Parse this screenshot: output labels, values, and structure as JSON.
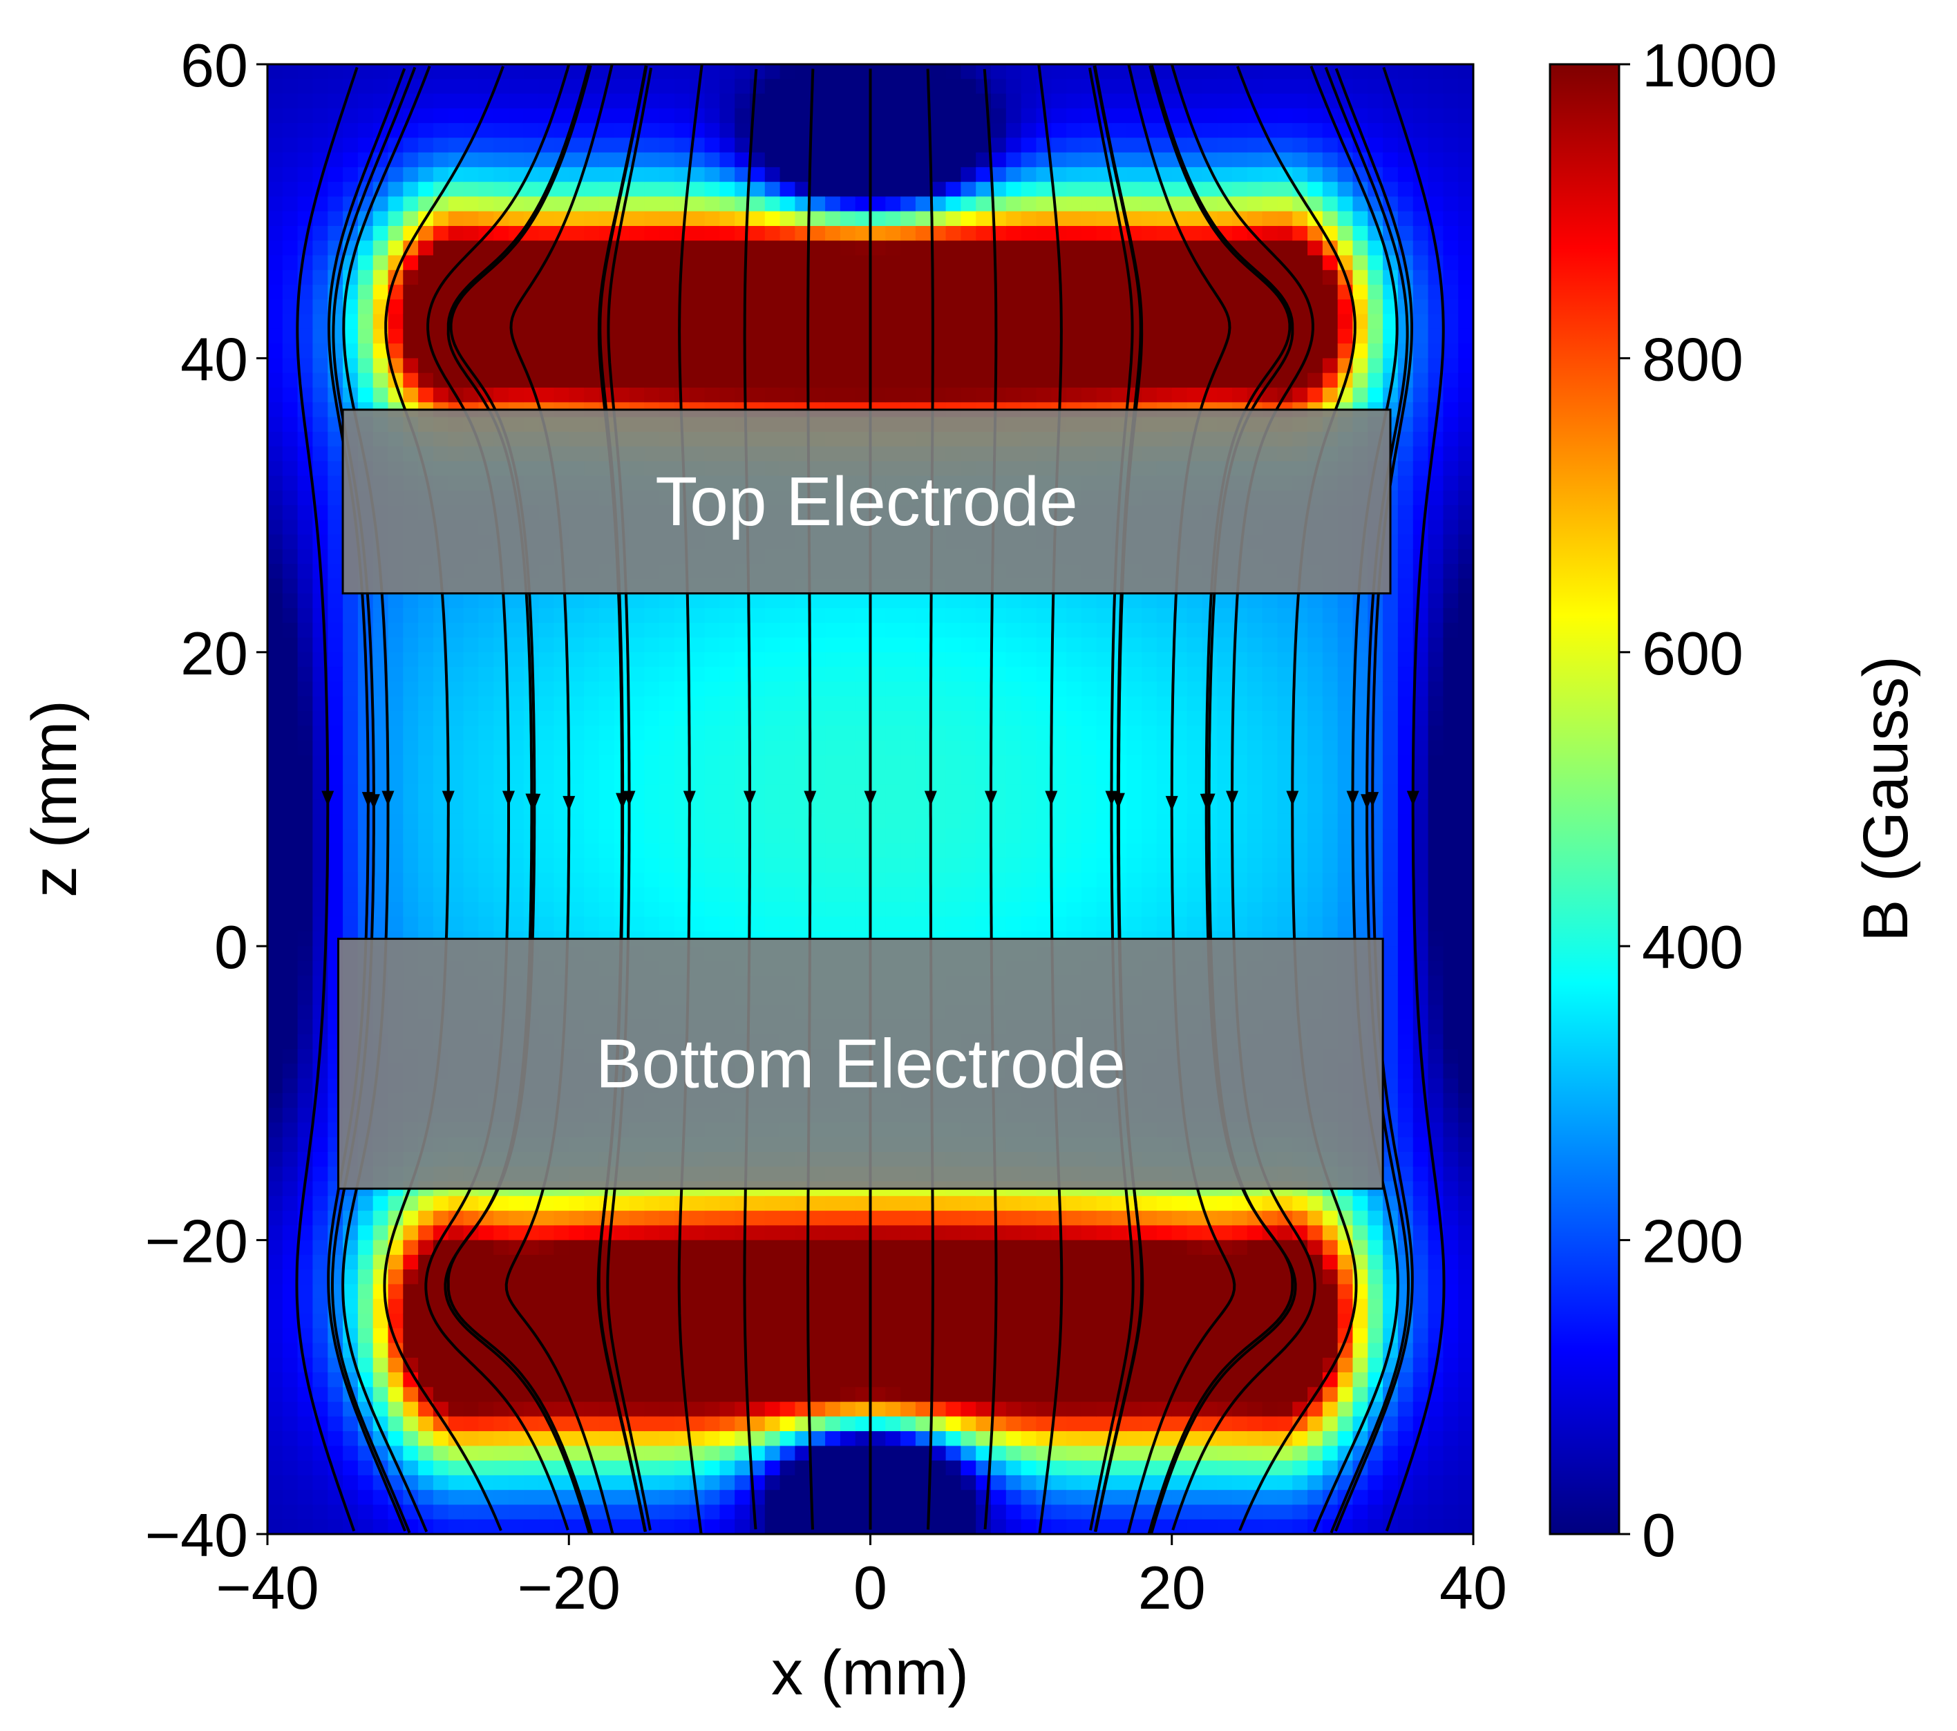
{
  "chart_data": {
    "type": "heatmap",
    "title": "",
    "xlabel": "x (mm)",
    "ylabel": "z (mm)",
    "xlim": [
      -40,
      40
    ],
    "ylim": [
      -40,
      60
    ],
    "xticks": [
      "−40",
      "−20",
      "0",
      "20",
      "40"
    ],
    "yticks": [
      "−40",
      "−20",
      "0",
      "20",
      "40",
      "60"
    ],
    "colorbar": {
      "label": "B (Gauss)",
      "range": [
        0,
        1000
      ],
      "ticks": [
        "0",
        "200",
        "400",
        "600",
        "800",
        "1000"
      ],
      "colormap": "jet",
      "colors": [
        "#00007f",
        "#0000ff",
        "#007fff",
        "#00ffff",
        "#7fff7f",
        "#ffff00",
        "#ff7f00",
        "#ff0000",
        "#7f0000"
      ]
    },
    "field": {
      "description_hidden": true,
      "saturated_regions": [
        {
          "x_range": [
            -35,
            35
          ],
          "z_range": [
            38,
            48
          ]
        },
        {
          "x_range": [
            -35,
            35
          ],
          "z_range": [
            -32,
            -20
          ]
        }
      ],
      "low_field_centers": [
        [
          0,
          52
        ],
        [
          0,
          -36
        ]
      ]
    },
    "annotations": [
      {
        "text": "Top Electrode",
        "x_range": [
          -35,
          34.5
        ],
        "z_range": [
          24,
          36.5
        ]
      },
      {
        "text": "Bottom Electrode",
        "x_range": [
          -35.3,
          34
        ],
        "z_range": [
          -16.5,
          0.5
        ]
      }
    ],
    "streamlines": true,
    "grid": false
  },
  "colors": {
    "electrode_fill": "#7f7f7f",
    "streamline": "#000000"
  }
}
